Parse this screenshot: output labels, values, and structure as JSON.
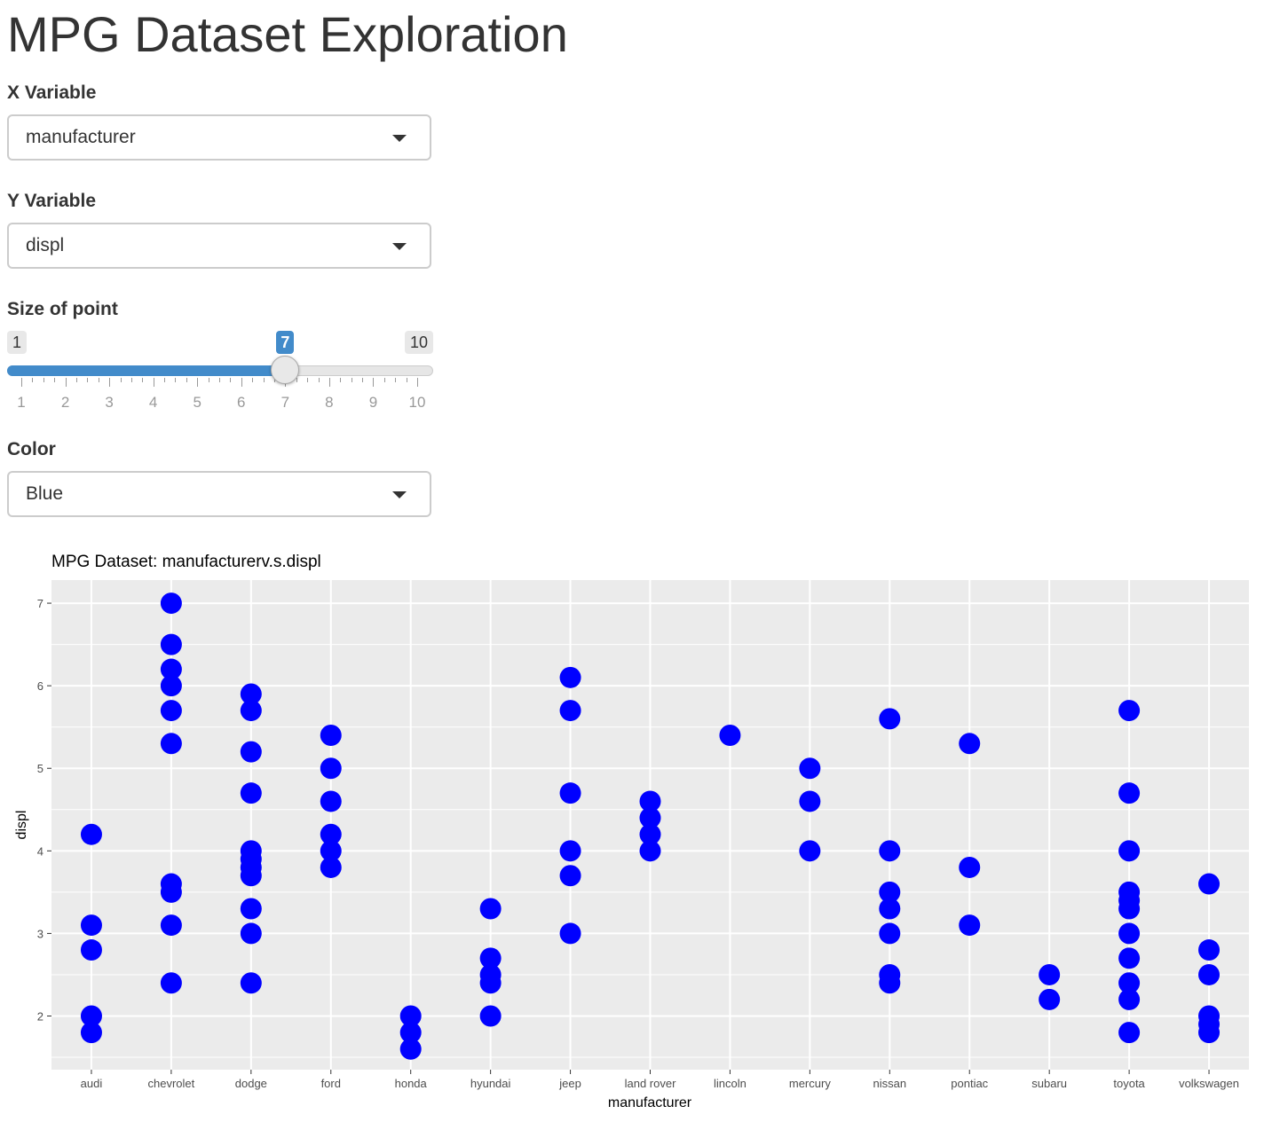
{
  "page": {
    "title": "MPG Dataset Exploration"
  },
  "controls": {
    "x_variable": {
      "label": "X Variable",
      "selected": "manufacturer"
    },
    "y_variable": {
      "label": "Y Variable",
      "selected": "displ"
    },
    "point_size": {
      "label": "Size of point",
      "min": 1,
      "max": 10,
      "value": 7,
      "min_label": "1",
      "max_label": "10",
      "value_label": "7",
      "tick_labels": [
        "1",
        "2",
        "3",
        "4",
        "5",
        "6",
        "7",
        "8",
        "9",
        "10"
      ]
    },
    "color": {
      "label": "Color",
      "selected": "Blue"
    }
  },
  "colors": {
    "point": "#0000ff",
    "panel": "#ebebeb",
    "slider_accent": "#428bca"
  },
  "chart_data": {
    "type": "scatter",
    "title": "MPG Dataset: manufacturerv.s.displ",
    "xlabel": "manufacturer",
    "ylabel": "displ",
    "ylim": [
      1.35,
      7.28
    ],
    "yticks": [
      2,
      3,
      4,
      5,
      6,
      7
    ],
    "ytick_labels": [
      "2",
      "3",
      "4",
      "5",
      "6",
      "7"
    ],
    "grid": true,
    "legend": "none",
    "categories": [
      "audi",
      "chevrolet",
      "dodge",
      "ford",
      "honda",
      "hyundai",
      "jeep",
      "land rover",
      "lincoln",
      "mercury",
      "nissan",
      "pontiac",
      "subaru",
      "toyota",
      "volkswagen"
    ],
    "points": [
      {
        "x": "audi",
        "y": [
          1.8,
          2.0,
          2.8,
          3.1,
          4.2
        ]
      },
      {
        "x": "chevrolet",
        "y": [
          2.4,
          3.1,
          3.5,
          3.6,
          5.3,
          5.7,
          6.0,
          6.2,
          6.5,
          7.0
        ]
      },
      {
        "x": "dodge",
        "y": [
          2.4,
          3.0,
          3.3,
          3.7,
          3.8,
          3.9,
          4.0,
          4.7,
          5.2,
          5.7,
          5.9
        ]
      },
      {
        "x": "ford",
        "y": [
          3.8,
          4.0,
          4.2,
          4.6,
          5.0,
          5.4
        ]
      },
      {
        "x": "honda",
        "y": [
          1.6,
          1.8,
          2.0
        ]
      },
      {
        "x": "hyundai",
        "y": [
          2.0,
          2.4,
          2.5,
          2.7,
          3.3
        ]
      },
      {
        "x": "jeep",
        "y": [
          3.0,
          3.7,
          4.0,
          4.7,
          5.7,
          6.1
        ]
      },
      {
        "x": "land rover",
        "y": [
          4.0,
          4.2,
          4.4,
          4.6
        ]
      },
      {
        "x": "lincoln",
        "y": [
          5.4
        ]
      },
      {
        "x": "mercury",
        "y": [
          4.0,
          4.6,
          5.0
        ]
      },
      {
        "x": "nissan",
        "y": [
          2.4,
          2.5,
          3.0,
          3.3,
          3.5,
          4.0,
          5.6
        ]
      },
      {
        "x": "pontiac",
        "y": [
          3.1,
          3.8,
          5.3
        ]
      },
      {
        "x": "subaru",
        "y": [
          2.2,
          2.5
        ]
      },
      {
        "x": "toyota",
        "y": [
          1.8,
          2.2,
          2.4,
          2.7,
          3.0,
          3.3,
          3.4,
          3.5,
          4.0,
          4.7,
          5.7
        ]
      },
      {
        "x": "volkswagen",
        "y": [
          1.8,
          1.9,
          2.0,
          2.5,
          2.8,
          3.6
        ]
      }
    ]
  }
}
